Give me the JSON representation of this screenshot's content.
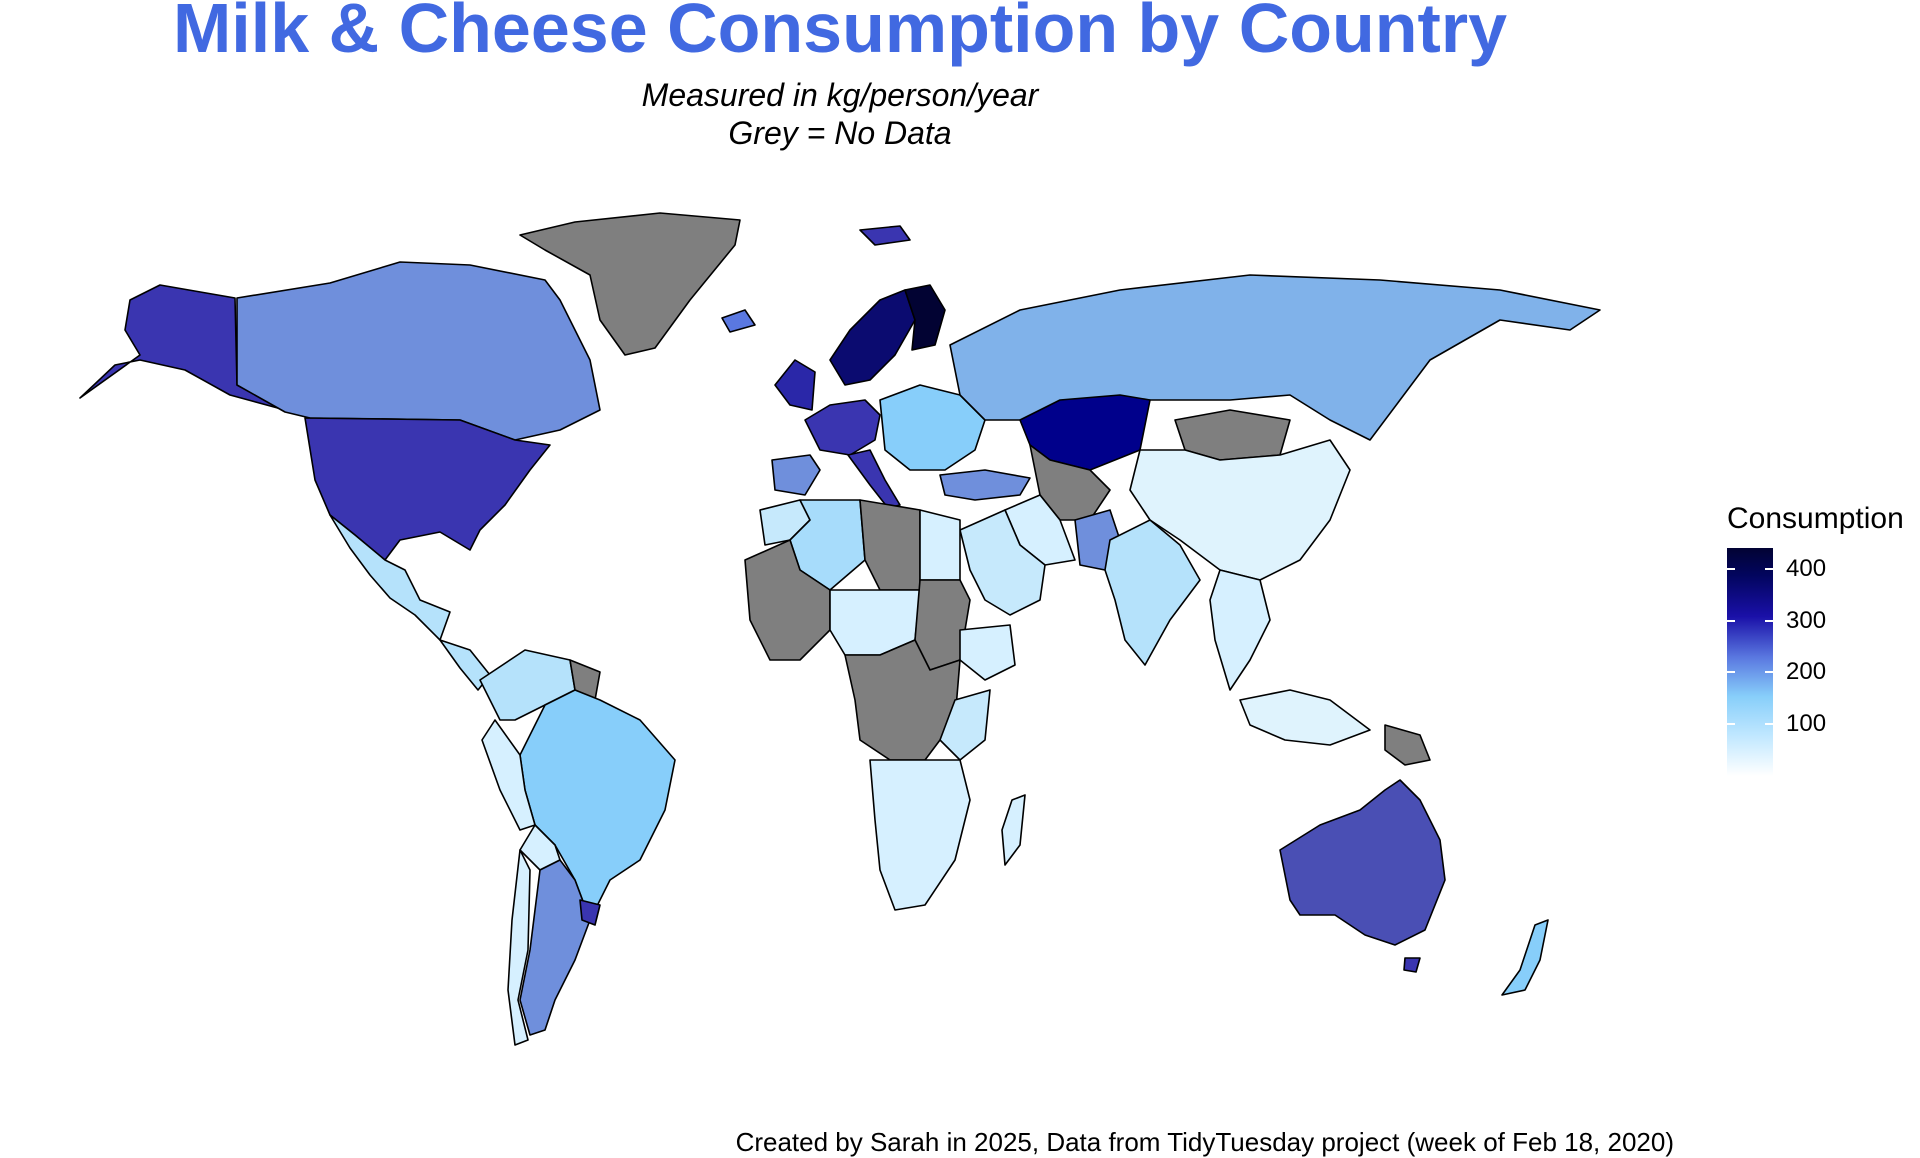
{
  "title": "Milk & Cheese Consumption by Country",
  "subtitle": {
    "line1": "Measured in kg/person/year",
    "line2": "Grey = No Data"
  },
  "legend": {
    "title": "Consumption",
    "ticks": [
      {
        "label": "400",
        "value": 400
      },
      {
        "label": "300",
        "value": 300
      },
      {
        "label": "200",
        "value": 200
      },
      {
        "label": "100",
        "value": 100
      }
    ],
    "range": [
      0,
      440
    ],
    "no_data_color": "#7f7f7f"
  },
  "caption": "Created by Sarah in 2025, Data from TidyTuesday project (week of Feb 18, 2020)",
  "chart_data": {
    "type": "heatmap",
    "subtype": "choropleth",
    "regions": [
      {
        "name": "Alaska (USA)",
        "color": "#3a35b0"
      },
      {
        "name": "Canada",
        "color": "#6f8fdc"
      },
      {
        "name": "Greenland",
        "color": "#7f7f7f"
      },
      {
        "name": "USA",
        "color": "#3a35b0"
      },
      {
        "name": "Mexico",
        "color": "#b5e2fb"
      },
      {
        "name": "Central America",
        "color": "#b5e2fb"
      },
      {
        "name": "Colombia/Venezuela",
        "color": "#b5e2fb"
      },
      {
        "name": "Guyana",
        "color": "#7f7f7f"
      },
      {
        "name": "Brazil",
        "color": "#87cefa"
      },
      {
        "name": "Peru",
        "color": "#d6f0ff"
      },
      {
        "name": "Bolivia",
        "color": "#d6f0ff"
      },
      {
        "name": "Argentina",
        "color": "#6f8fdc"
      },
      {
        "name": "Uruguay",
        "color": "#3a35b0"
      },
      {
        "name": "Chile",
        "color": "#d6f0ff"
      },
      {
        "name": "Iceland",
        "color": "#5a78e0"
      },
      {
        "name": "Ireland/UK",
        "color": "#2a27a8"
      },
      {
        "name": "France/Germany",
        "color": "#3a35b0"
      },
      {
        "name": "Spain",
        "color": "#6f8fdc"
      },
      {
        "name": "Italy",
        "color": "#3a35b0"
      },
      {
        "name": "Scandinavia",
        "color": "#0b0b70"
      },
      {
        "name": "Finland",
        "color": "#020333"
      },
      {
        "name": "Eastern Europe",
        "color": "#87cefa"
      },
      {
        "name": "Turkey",
        "color": "#6f8fdc"
      },
      {
        "name": "Russia",
        "color": "#80b2ea"
      },
      {
        "name": "Kazakhstan",
        "color": "#00008b"
      },
      {
        "name": "Mongolia",
        "color": "#7f7f7f"
      },
      {
        "name": "China",
        "color": "#dff3fd"
      },
      {
        "name": "Central Asia",
        "color": "#7f7f7f"
      },
      {
        "name": "Iran",
        "color": "#d6f0ff"
      },
      {
        "name": "Pakistan",
        "color": "#6f8fdc"
      },
      {
        "name": "India",
        "color": "#b5e2fb"
      },
      {
        "name": "Arabia",
        "color": "#c6e9fc"
      },
      {
        "name": "Morocco",
        "color": "#c6e9fc"
      },
      {
        "name": "Algeria",
        "color": "#a7dcfb"
      },
      {
        "name": "Libya",
        "color": "#7f7f7f"
      },
      {
        "name": "Egypt",
        "color": "#d6f0ff"
      },
      {
        "name": "West Africa",
        "color": "#7f7f7f"
      },
      {
        "name": "Niger/Chad",
        "color": "#d6f0ff"
      },
      {
        "name": "Sudan",
        "color": "#7f7f7f"
      },
      {
        "name": "Ethiopia",
        "color": "#d6f0ff"
      },
      {
        "name": "Central Africa",
        "color": "#7f7f7f"
      },
      {
        "name": "East Africa",
        "color": "#c6e9fc"
      },
      {
        "name": "Southern Africa",
        "color": "#d6f0ff"
      },
      {
        "name": "Madagascar",
        "color": "#d6f0ff"
      },
      {
        "name": "Southeast Asia",
        "color": "#d6f0ff"
      },
      {
        "name": "Indonesia",
        "color": "#dff3fd"
      },
      {
        "name": "Papua New Guinea",
        "color": "#7f7f7f"
      },
      {
        "name": "Australia",
        "color": "#4a4fb4"
      },
      {
        "name": "Tasmania",
        "color": "#3a35b0"
      },
      {
        "name": "New Zealand",
        "color": "#87cefa"
      },
      {
        "name": "Svalbard",
        "color": "#3a35b0"
      }
    ]
  }
}
